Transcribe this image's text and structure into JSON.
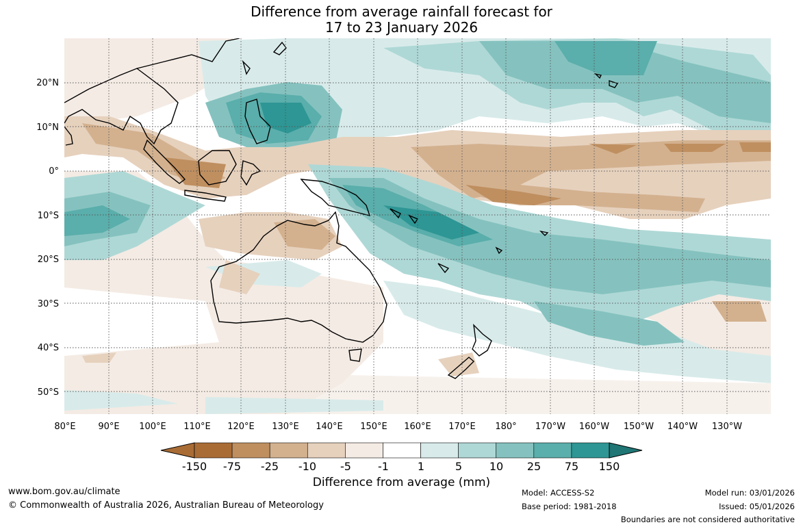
{
  "title": {
    "line1": "Difference from average rainfall forecast for",
    "line2": "17 to 23 January 2026"
  },
  "map": {
    "lat_labels": [
      "20°N",
      "10°N",
      "0°",
      "10°S",
      "20°S",
      "30°S",
      "40°S",
      "50°S"
    ],
    "lon_labels": [
      "80°E",
      "90°E",
      "100°E",
      "110°E",
      "120°E",
      "130°E",
      "140°E",
      "150°E",
      "160°E",
      "170°E",
      "180°",
      "170°W",
      "160°W",
      "150°W",
      "140°W",
      "130°W"
    ],
    "extent": {
      "lon_min": 80,
      "lon_max": 240,
      "lat_min": -55,
      "lat_max": 30
    }
  },
  "colorbar": {
    "ticks": [
      "-150",
      "-75",
      "-25",
      "-10",
      "-5",
      "-1",
      "1",
      "5",
      "10",
      "25",
      "75",
      "150"
    ],
    "colors": [
      "#a96c35",
      "#bf8f60",
      "#d3b18f",
      "#e6d1bd",
      "#f4ebe4",
      "#ffffff",
      "#d8ebea",
      "#aed8d6",
      "#85c2bf",
      "#5aaeab",
      "#2e9694",
      "#1f7674"
    ],
    "label": "Difference from average (mm)"
  },
  "footer": {
    "url": "www.bom.gov.au/climate",
    "copyright": "© Commonwealth of Australia 2026, Australian Bureau of Meteorology",
    "model": "Model: ACCESS-S2",
    "base_period": "Base period: 1981-2018",
    "model_run": "Model run: 03/01/2026",
    "issued": "Issued: 05/01/2026",
    "disclaimer": "Boundaries are not considered authoritative"
  }
}
